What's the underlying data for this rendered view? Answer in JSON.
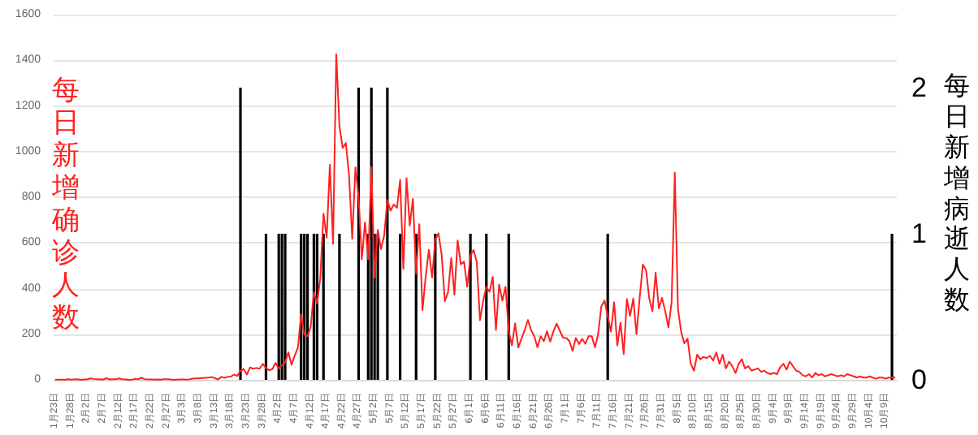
{
  "chart_data": {
    "type": "bar",
    "ylabel": "每日新增确诊人数",
    "y2label": "每日新增病逝人数",
    "categories": [
      "1月23日",
      null,
      null,
      null,
      null,
      "1月28日",
      null,
      null,
      null,
      null,
      "2月2日",
      null,
      null,
      null,
      null,
      "2月7日",
      null,
      null,
      null,
      null,
      "2月12日",
      null,
      null,
      null,
      null,
      "2月17日",
      null,
      null,
      null,
      null,
      "2月22日",
      null,
      null,
      null,
      null,
      "2月27日",
      null,
      null,
      null,
      null,
      "3月3日",
      null,
      null,
      null,
      null,
      "3月8日",
      null,
      null,
      null,
      null,
      "3月13日",
      null,
      null,
      null,
      null,
      "3月18日",
      null,
      null,
      null,
      null,
      "3月23日",
      null,
      null,
      null,
      null,
      "3月28日",
      null,
      null,
      null,
      null,
      "4月2日",
      null,
      null,
      null,
      null,
      "4月7日",
      null,
      null,
      null,
      null,
      "4月12日",
      null,
      null,
      null,
      null,
      "4月17日",
      null,
      null,
      null,
      null,
      "4月22日",
      null,
      null,
      null,
      null,
      "4月27日",
      null,
      null,
      null,
      null,
      "5月2日",
      null,
      null,
      null,
      null,
      "5月7日",
      null,
      null,
      null,
      null,
      "5月12日",
      null,
      null,
      null,
      null,
      "5月17日",
      null,
      null,
      null,
      null,
      "5月22日",
      null,
      null,
      null,
      null,
      "5月27日",
      null,
      null,
      null,
      null,
      "6月1日",
      null,
      null,
      null,
      null,
      "6月6日",
      null,
      null,
      null,
      null,
      "6月11日",
      null,
      null,
      null,
      null,
      "6月16日",
      null,
      null,
      null,
      null,
      "6月21日",
      null,
      null,
      null,
      null,
      "6月26日",
      null,
      null,
      null,
      null,
      "7月1日",
      null,
      null,
      null,
      null,
      "7月6日",
      null,
      null,
      null,
      null,
      "7月11日",
      null,
      null,
      null,
      null,
      "7月16日",
      null,
      null,
      null,
      null,
      "7月21日",
      null,
      null,
      null,
      null,
      "7月26日",
      null,
      null,
      null,
      null,
      "7月31日",
      null,
      null,
      null,
      null,
      "8月5日",
      null,
      null,
      null,
      null,
      "8月10日",
      null,
      null,
      null,
      null,
      "8月15日",
      null,
      null,
      null,
      null,
      "8月20日",
      null,
      null,
      null,
      null,
      "8月25日",
      null,
      null,
      null,
      null,
      "8月30日",
      null,
      null,
      null,
      null,
      "9月4日",
      null,
      null,
      null,
      null,
      "9月9日",
      null,
      null,
      null,
      null,
      "9月14日",
      null,
      null,
      null,
      null,
      "9月19日",
      null,
      null,
      null,
      null,
      "9月24日",
      null,
      null,
      null,
      null,
      "9月29日",
      null,
      null,
      null,
      null,
      "10月4日",
      null,
      null,
      null,
      null,
      "10月9日",
      null,
      null,
      null
    ],
    "series": [
      {
        "type": "line",
        "color": "#ff2020",
        "values": [
          1,
          1,
          1,
          0,
          3,
          1,
          2,
          3,
          0,
          2,
          2,
          6,
          4,
          3,
          3,
          1,
          7,
          2,
          3,
          3,
          6,
          3,
          2,
          0,
          1,
          4,
          3,
          9,
          3,
          2,
          2,
          1,
          2,
          1,
          3,
          3,
          2,
          0,
          1,
          2,
          2,
          1,
          2,
          5,
          6,
          6,
          8,
          9,
          10,
          12,
          7,
          2,
          13,
          9,
          13,
          14,
          23,
          17,
          40,
          47,
          23,
          54,
          49,
          52,
          49,
          70,
          52,
          42,
          47,
          74,
          49,
          65,
          75,
          120,
          66,
          106,
          142,
          287,
          198,
          191,
          233,
          386,
          334,
          447,
          728,
          623,
          942,
          596,
          1426,
          1111,
          1016,
          1037,
          897,
          618,
          931,
          799,
          528,
          690,
          528,
          932,
          447,
          657,
          573,
          632,
          788,
          741,
          768,
          753,
          876,
          486,
          884,
          675,
          793,
          465,
          682,
          305,
          451,
          570,
          448,
          614,
          642,
          548,
          344,
          383,
          533,
          373,
          611,
          506,
          518,
          408,
          544,
          569,
          516,
          261,
          347,
          407,
          386,
          451,
          218,
          417,
          347,
          407,
          214,
          151,
          247,
          142,
          181,
          218,
          262,
          218,
          191,
          142,
          191,
          169,
          213,
          167,
          213,
          246,
          215,
          185,
          183,
          170,
          126,
          183,
          157,
          179,
          158,
          191,
          191,
          142,
          200,
          322,
          347,
          280,
          211,
          340,
          150,
          250,
          113,
          354,
          280,
          356,
          200,
          359,
          505,
          481,
          356,
          300,
          469,
          313,
          359,
          300,
          230,
          340,
          908,
          310,
          210,
          160,
          180,
          70,
          40,
          110,
          90,
          100,
          95,
          105,
          85,
          120,
          70,
          110,
          50,
          80,
          60,
          30,
          70,
          90,
          50,
          60,
          40,
          45,
          50,
          35,
          40,
          30,
          25,
          30,
          25,
          55,
          70,
          45,
          80,
          60,
          40,
          35,
          20,
          15,
          25,
          10,
          30,
          20,
          25,
          15,
          20,
          25,
          20,
          15,
          20,
          15,
          25,
          20,
          15,
          10,
          15,
          10,
          10,
          15,
          10,
          5,
          10,
          10,
          5,
          10,
          10,
          10
        ]
      },
      {
        "type": "bar",
        "axis": "y2",
        "color": "#000000",
        "values": [
          null,
          null,
          null,
          null,
          null,
          null,
          null,
          null,
          null,
          null,
          null,
          null,
          null,
          null,
          null,
          null,
          null,
          null,
          null,
          null,
          null,
          null,
          null,
          null,
          null,
          null,
          null,
          null,
          null,
          null,
          null,
          null,
          null,
          null,
          null,
          null,
          null,
          null,
          null,
          null,
          null,
          null,
          null,
          null,
          null,
          null,
          null,
          null,
          null,
          null,
          null,
          null,
          null,
          null,
          null,
          null,
          null,
          null,
          2,
          null,
          null,
          null,
          null,
          null,
          null,
          null,
          1,
          null,
          null,
          null,
          1,
          1,
          1,
          null,
          null,
          null,
          null,
          1,
          1,
          1,
          null,
          1,
          1,
          null,
          1,
          null,
          null,
          null,
          null,
          1,
          null,
          null,
          null,
          null,
          null,
          2,
          null,
          null,
          1,
          2,
          1,
          1,
          null,
          null,
          2,
          null,
          null,
          null,
          1,
          null,
          null,
          null,
          null,
          1,
          null,
          null,
          null,
          null,
          null,
          1,
          null,
          null,
          null,
          null,
          null,
          null,
          null,
          null,
          null,
          null,
          1,
          null,
          null,
          null,
          null,
          1,
          null,
          null,
          null,
          null,
          null,
          null,
          1,
          null,
          null,
          null,
          null,
          null,
          null,
          null,
          null,
          null,
          null,
          null,
          null,
          null,
          null,
          null,
          null,
          null,
          null,
          null,
          null,
          null,
          null,
          null,
          null,
          null,
          null,
          null,
          null,
          null,
          null,
          1,
          null,
          null,
          null,
          null,
          null,
          null,
          null,
          null,
          null,
          null,
          null,
          null,
          null,
          null,
          null,
          null,
          null,
          null,
          null,
          null,
          null,
          null,
          null,
          null,
          null,
          null,
          null,
          null,
          null,
          null,
          null,
          null,
          null,
          null,
          null,
          null,
          null,
          null,
          null,
          null,
          null,
          null,
          null,
          null,
          null,
          null,
          null,
          null,
          null,
          null,
          null,
          null,
          null,
          null,
          null,
          null,
          null,
          null,
          null,
          null,
          null,
          null,
          null,
          null,
          null,
          null,
          null,
          null,
          null,
          null,
          null,
          null,
          null,
          null,
          null,
          null,
          null,
          null,
          null,
          null,
          null,
          null,
          null,
          null,
          null,
          null,
          null,
          null,
          1,
          null
        ]
      }
    ],
    "ylim": [
      0,
      1600
    ],
    "yticks": [
      0,
      200,
      400,
      600,
      800,
      1000,
      1200,
      1400,
      1600
    ],
    "y2lim": [
      0,
      2.5
    ],
    "y2ticks": [
      0,
      1,
      2
    ],
    "grid": "y",
    "marker": "none"
  }
}
